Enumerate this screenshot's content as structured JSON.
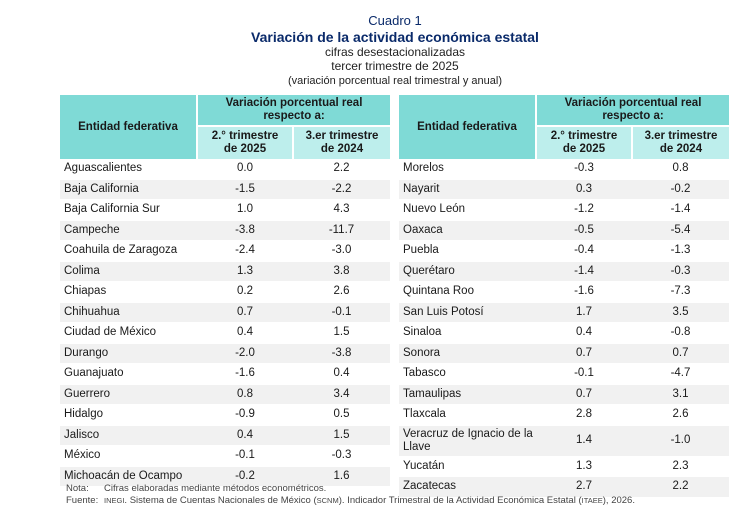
{
  "header": {
    "cuadro": "Cuadro 1",
    "title": "Variación de la actividad económica estatal",
    "subtitle1": "cifras desestacionalizadas",
    "subtitle2": "tercer trimestre de 2025",
    "subtitle3": "(variación porcentual real trimestral y anual)"
  },
  "table_headers": {
    "entity": "Entidad federativa",
    "group": "Variación porcentual real respecto a:",
    "col1": "2.° trimestre de 2025",
    "col2": "3.er trimestre de 2024"
  },
  "colors": {
    "header_dark": "#7fdad6",
    "header_light": "#bdeeec",
    "stripe": "#f1f1f1",
    "title": "#0a2a6a"
  },
  "left_rows": [
    {
      "entity": "Aguascalientes",
      "q2_2025": "0.0",
      "q3_2024": "2.2"
    },
    {
      "entity": "Baja California",
      "q2_2025": "-1.5",
      "q3_2024": "-2.2"
    },
    {
      "entity": "Baja California Sur",
      "q2_2025": "1.0",
      "q3_2024": "4.3"
    },
    {
      "entity": "Campeche",
      "q2_2025": "-3.8",
      "q3_2024": "-11.7"
    },
    {
      "entity": "Coahuila de Zaragoza",
      "q2_2025": "-2.4",
      "q3_2024": "-3.0"
    },
    {
      "entity": "Colima",
      "q2_2025": "1.3",
      "q3_2024": "3.8"
    },
    {
      "entity": "Chiapas",
      "q2_2025": "0.2",
      "q3_2024": "2.6"
    },
    {
      "entity": "Chihuahua",
      "q2_2025": "0.7",
      "q3_2024": "-0.1"
    },
    {
      "entity": "Ciudad de México",
      "q2_2025": "0.4",
      "q3_2024": "1.5"
    },
    {
      "entity": "Durango",
      "q2_2025": "-2.0",
      "q3_2024": "-3.8"
    },
    {
      "entity": "Guanajuato",
      "q2_2025": "-1.6",
      "q3_2024": "0.4"
    },
    {
      "entity": "Guerrero",
      "q2_2025": "0.8",
      "q3_2024": "3.4"
    },
    {
      "entity": "Hidalgo",
      "q2_2025": "-0.9",
      "q3_2024": "0.5"
    },
    {
      "entity": "Jalisco",
      "q2_2025": "0.4",
      "q3_2024": "1.5"
    },
    {
      "entity": "México",
      "q2_2025": "-0.1",
      "q3_2024": "-0.3"
    },
    {
      "entity": "Michoacán de Ocampo",
      "q2_2025": "-0.2",
      "q3_2024": "1.6"
    }
  ],
  "right_rows": [
    {
      "entity": "Morelos",
      "q2_2025": "-0.3",
      "q3_2024": "0.8"
    },
    {
      "entity": "Nayarit",
      "q2_2025": "0.3",
      "q3_2024": "-0.2"
    },
    {
      "entity": "Nuevo León",
      "q2_2025": "-1.2",
      "q3_2024": "-1.4"
    },
    {
      "entity": "Oaxaca",
      "q2_2025": "-0.5",
      "q3_2024": "-5.4"
    },
    {
      "entity": "Puebla",
      "q2_2025": "-0.4",
      "q3_2024": "-1.3"
    },
    {
      "entity": "Querétaro",
      "q2_2025": "-1.4",
      "q3_2024": "-0.3"
    },
    {
      "entity": "Quintana Roo",
      "q2_2025": "-1.6",
      "q3_2024": "-7.3"
    },
    {
      "entity": "San Luis Potosí",
      "q2_2025": "1.7",
      "q3_2024": "3.5"
    },
    {
      "entity": "Sinaloa",
      "q2_2025": "0.4",
      "q3_2024": "-0.8"
    },
    {
      "entity": "Sonora",
      "q2_2025": "0.7",
      "q3_2024": "0.7"
    },
    {
      "entity": "Tabasco",
      "q2_2025": "-0.1",
      "q3_2024": "-4.7"
    },
    {
      "entity": "Tamaulipas",
      "q2_2025": "0.7",
      "q3_2024": "3.1"
    },
    {
      "entity": "Tlaxcala",
      "q2_2025": "2.8",
      "q3_2024": "2.6"
    },
    {
      "entity": "Veracruz de Ignacio de la Llave",
      "q2_2025": "1.4",
      "q3_2024": "-1.0"
    },
    {
      "entity": "Yucatán",
      "q2_2025": "1.3",
      "q3_2024": "2.3"
    },
    {
      "entity": "Zacatecas",
      "q2_2025": "2.7",
      "q3_2024": "2.2"
    }
  ],
  "notes": {
    "nota_label": "Nota:",
    "nota_text": "Cifras elaboradas mediante métodos econométricos.",
    "fuente_label": "Fuente:",
    "fuente_inegi": "INEGI",
    "fuente_text1": ". Sistema de Cuentas Nacionales de México (",
    "fuente_scnm": "SCNM",
    "fuente_text2": "). Indicador Trimestral de la Actividad Económica Estatal (",
    "fuente_itaee": "ITAEE",
    "fuente_text3": "), 2026."
  }
}
